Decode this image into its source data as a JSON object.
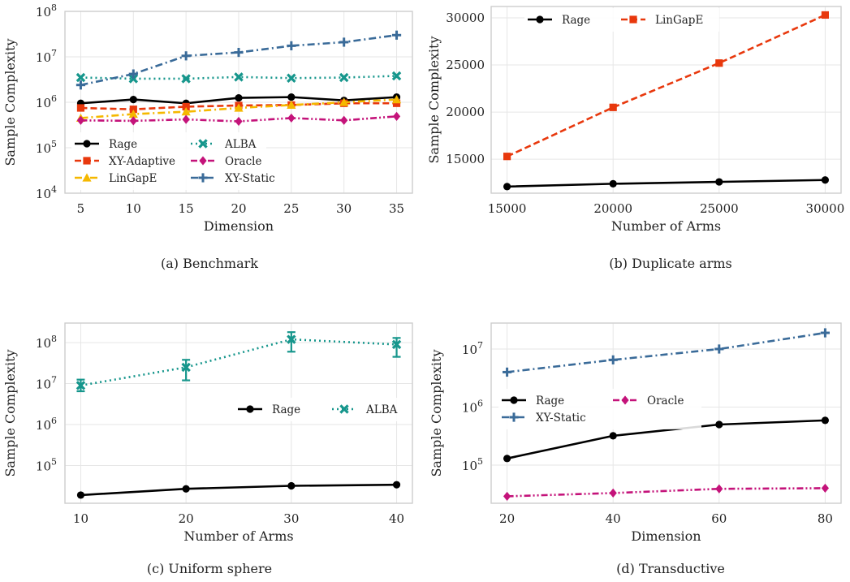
{
  "chart_data": [
    {
      "id": "a",
      "type": "line",
      "caption": "(a) Benchmark",
      "xlabel": "Dimension",
      "ylabel": "Sample Complexity",
      "yscale": "log",
      "xlim": [
        3.5,
        36.5
      ],
      "ylim": [
        10000,
        100000000
      ],
      "xticks": [
        5,
        10,
        15,
        20,
        25,
        30,
        35
      ],
      "xtick_labels": [
        "5",
        "10",
        "15",
        "20",
        "25",
        "30",
        "35"
      ],
      "yticks": [
        10000,
        100000,
        1000000,
        10000000,
        100000000
      ],
      "ytick_labels": [
        [
          "10",
          "4"
        ],
        [
          "10",
          "5"
        ],
        [
          "10",
          "6"
        ],
        [
          "10",
          "7"
        ],
        [
          "10",
          "8"
        ]
      ],
      "legend": "lower-center, 2 columns",
      "x": [
        5,
        10,
        15,
        20,
        25,
        30,
        35
      ],
      "series": [
        {
          "name": "Rage",
          "color": "#000000",
          "dash": "solid",
          "marker": "circle",
          "values": [
            950000,
            1150000,
            950000,
            1250000,
            1300000,
            1100000,
            1300000
          ]
        },
        {
          "name": "XY-Adaptive",
          "color": "#e8380d",
          "dash": "dashed",
          "marker": "square",
          "values": [
            750000,
            700000,
            800000,
            850000,
            870000,
            950000,
            950000
          ]
        },
        {
          "name": "LinGapE",
          "color": "#f5b800",
          "dash": "dashdot",
          "marker": "triangle",
          "values": [
            450000,
            550000,
            620000,
            750000,
            870000,
            1000000,
            1150000
          ]
        },
        {
          "name": "ALBA",
          "color": "#16968c",
          "dash": "dotted",
          "marker": "x",
          "values": [
            3500000,
            3300000,
            3300000,
            3600000,
            3400000,
            3500000,
            3800000
          ]
        },
        {
          "name": "Oracle",
          "color": "#c4137a",
          "dash": "dashdotdot",
          "marker": "diamond",
          "values": [
            400000,
            390000,
            420000,
            380000,
            450000,
            400000,
            490000
          ]
        },
        {
          "name": "XY-Static",
          "color": "#3a6b99",
          "dash": "dashdot",
          "marker": "plus",
          "values": [
            2400000,
            4200000,
            10500000,
            12500000,
            17500000,
            21000000,
            30000000
          ]
        }
      ]
    },
    {
      "id": "b",
      "type": "line",
      "caption": "(b) Duplicate arms",
      "xlabel": "Number of Arms",
      "ylabel": "Sample Complexity",
      "yscale": "linear",
      "xlim": [
        14250,
        30750
      ],
      "ylim": [
        11400,
        31200
      ],
      "xticks": [
        15000,
        20000,
        25000,
        30000
      ],
      "xtick_labels": [
        "15000",
        "20000",
        "25000",
        "30000"
      ],
      "yticks": [
        15000,
        20000,
        25000,
        30000
      ],
      "ytick_labels": [
        "15000",
        "20000",
        "25000",
        "30000"
      ],
      "legend": "upper-left, 2 columns",
      "x": [
        15000,
        20000,
        25000,
        30000
      ],
      "series": [
        {
          "name": "Rage",
          "color": "#000000",
          "dash": "solid",
          "marker": "circle",
          "values": [
            12100,
            12400,
            12600,
            12800
          ]
        },
        {
          "name": "LinGapE",
          "color": "#e8380d",
          "dash": "dashed",
          "marker": "square",
          "values": [
            15300,
            20500,
            25200,
            30300
          ]
        }
      ]
    },
    {
      "id": "c",
      "type": "line",
      "caption": "(c) Uniform sphere",
      "xlabel": "Number of Arms",
      "ylabel": "Sample Complexity",
      "yscale": "log",
      "xlim": [
        8.5,
        41.5
      ],
      "ylim": [
        12000,
        300000000
      ],
      "xticks": [
        10,
        20,
        30,
        40
      ],
      "xtick_labels": [
        "10",
        "20",
        "30",
        "40"
      ],
      "yticks": [
        100000,
        1000000,
        10000000,
        100000000
      ],
      "ytick_labels": [
        [
          "10",
          "5"
        ],
        [
          "10",
          "6"
        ],
        [
          "10",
          "7"
        ],
        [
          "10",
          "8"
        ]
      ],
      "legend": "right, 2 columns",
      "x": [
        10,
        20,
        30,
        40
      ],
      "series": [
        {
          "name": "Rage",
          "color": "#000000",
          "dash": "solid",
          "marker": "circle",
          "values": [
            19000,
            27000,
            32000,
            34000
          ]
        },
        {
          "name": "ALBA",
          "color": "#16968c",
          "dash": "dotted",
          "marker": "x",
          "values": [
            9000000,
            25000000,
            120000000,
            90000000
          ],
          "err_low": [
            6500000,
            12000000,
            60000000,
            45000000
          ],
          "err_high": [
            12500000,
            38000000,
            180000000,
            130000000
          ]
        }
      ]
    },
    {
      "id": "d",
      "type": "line",
      "caption": "(d) Transductive",
      "xlabel": "Dimension",
      "ylabel": "Sample Complexity",
      "yscale": "log",
      "xlim": [
        17,
        83
      ],
      "ylim": [
        22000,
        28000000
      ],
      "xticks": [
        20,
        40,
        60,
        80
      ],
      "xtick_labels": [
        "20",
        "40",
        "60",
        "80"
      ],
      "yticks": [
        100000,
        1000000,
        10000000
      ],
      "ytick_labels": [
        [
          "10",
          "5"
        ],
        [
          "10",
          "6"
        ],
        [
          "10",
          "7"
        ]
      ],
      "legend": "center-left, 2 columns",
      "x": [
        20,
        40,
        60,
        80
      ],
      "series": [
        {
          "name": "Rage",
          "color": "#000000",
          "dash": "solid",
          "marker": "circle",
          "values": [
            130000,
            320000,
            500000,
            590000
          ]
        },
        {
          "name": "XY-Static",
          "color": "#3a6b99",
          "dash": "dashdot",
          "marker": "plus",
          "values": [
            4000000,
            6500000,
            10000000,
            19000000
          ]
        },
        {
          "name": "Oracle",
          "color": "#c4137a",
          "dash": "dashdotdot",
          "marker": "diamond",
          "values": [
            29000,
            33000,
            39000,
            40000
          ]
        }
      ]
    }
  ]
}
